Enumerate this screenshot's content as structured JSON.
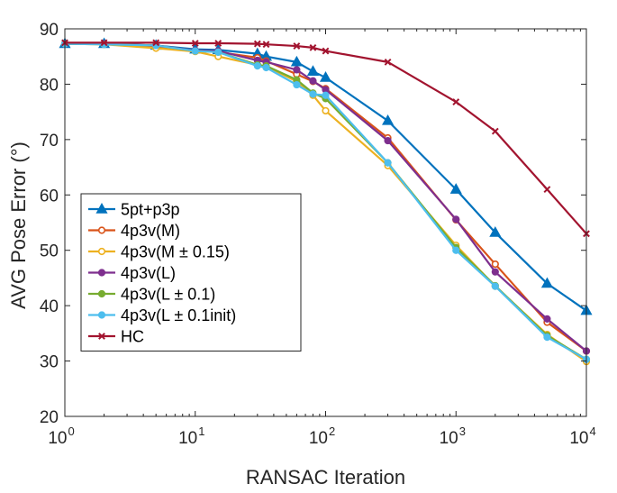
{
  "chart_data": {
    "type": "line",
    "title": "",
    "xlabel": "RANSAC Iteration",
    "ylabel": "AVG Pose Error (°)",
    "xscale": "log",
    "xlim": [
      1,
      10000
    ],
    "ylim": [
      20,
      90
    ],
    "yticks": [
      20,
      30,
      40,
      50,
      60,
      70,
      80,
      90
    ],
    "xticks": [
      {
        "value": 1,
        "base": "10",
        "exp": "0"
      },
      {
        "value": 10,
        "base": "10",
        "exp": "1"
      },
      {
        "value": 100,
        "base": "10",
        "exp": "2"
      },
      {
        "value": 1000,
        "base": "10",
        "exp": "3"
      },
      {
        "value": 10000,
        "base": "10",
        "exp": "4"
      }
    ],
    "legend_position": "bottom-left",
    "series": [
      {
        "name": "5pt+p3p",
        "color": "#0072BD",
        "marker": "triangle",
        "x": [
          1,
          2,
          5,
          10,
          15,
          30,
          35,
          60,
          80,
          100,
          300,
          1000,
          2000,
          5000,
          10000
        ],
        "y": [
          87.3,
          87.3,
          87.0,
          86.3,
          86.2,
          85.5,
          85.0,
          84.0,
          82.3,
          81.2,
          73.4,
          61.0,
          53.2,
          44.0,
          39.1
        ]
      },
      {
        "name": "4p3v(M)",
        "color": "#D95319",
        "marker": "circle",
        "x": [
          1,
          2,
          5,
          10,
          15,
          30,
          35,
          60,
          80,
          100,
          300,
          1000,
          2000,
          5000,
          10000
        ],
        "y": [
          87.3,
          87.3,
          86.8,
          86.0,
          85.8,
          84.8,
          84.2,
          81.8,
          80.5,
          79.2,
          70.3,
          55.5,
          47.5,
          37.0,
          31.8
        ]
      },
      {
        "name": "4p3v(M ± 0.15)",
        "color": "#EDB120",
        "marker": "circle",
        "x": [
          1,
          2,
          5,
          10,
          15,
          30,
          35,
          60,
          80,
          100,
          300,
          1000,
          2000,
          5000,
          10000
        ],
        "y": [
          87.3,
          87.2,
          86.5,
          85.9,
          85.0,
          83.5,
          83.2,
          80.5,
          78.0,
          75.2,
          65.3,
          50.9,
          43.5,
          34.8,
          29.9
        ]
      },
      {
        "name": "4p3v(L)",
        "color": "#7E2F8E",
        "marker": "circle",
        "x": [
          1,
          2,
          5,
          10,
          15,
          30,
          35,
          60,
          80,
          100,
          300,
          1000,
          2000,
          5000,
          10000
        ],
        "y": [
          87.3,
          87.3,
          87.0,
          86.1,
          86.0,
          84.3,
          84.0,
          82.6,
          80.6,
          79.0,
          69.8,
          55.6,
          46.1,
          37.6,
          31.8
        ]
      },
      {
        "name": "4p3v(L ± 0.1)",
        "color": "#77AC30",
        "marker": "circle",
        "x": [
          1,
          2,
          5,
          10,
          15,
          30,
          35,
          60,
          80,
          100,
          300,
          1000,
          2000,
          5000,
          10000
        ],
        "y": [
          87.3,
          87.2,
          87.0,
          86.0,
          85.8,
          83.5,
          83.3,
          80.8,
          78.4,
          77.4,
          65.8,
          50.5,
          43.6,
          34.6,
          30.3
        ]
      },
      {
        "name": "4p3v(L ± 0.1init)",
        "color": "#4DBEEE",
        "marker": "circle",
        "x": [
          1,
          2,
          5,
          10,
          15,
          30,
          35,
          60,
          80,
          100,
          300,
          1000,
          2000,
          5000,
          10000
        ],
        "y": [
          87.3,
          87.2,
          87.0,
          86.0,
          85.8,
          83.3,
          83.0,
          79.9,
          78.2,
          78.0,
          65.8,
          50.0,
          43.5,
          34.3,
          30.3
        ]
      },
      {
        "name": "HC",
        "color": "#A2142F",
        "marker": "cross",
        "x": [
          1,
          2,
          5,
          10,
          15,
          30,
          35,
          60,
          80,
          100,
          300,
          1000,
          2000,
          5000,
          10000
        ],
        "y": [
          87.5,
          87.5,
          87.5,
          87.4,
          87.4,
          87.3,
          87.2,
          86.9,
          86.6,
          86.0,
          84.0,
          76.8,
          71.5,
          61.0,
          53.0
        ]
      }
    ]
  }
}
